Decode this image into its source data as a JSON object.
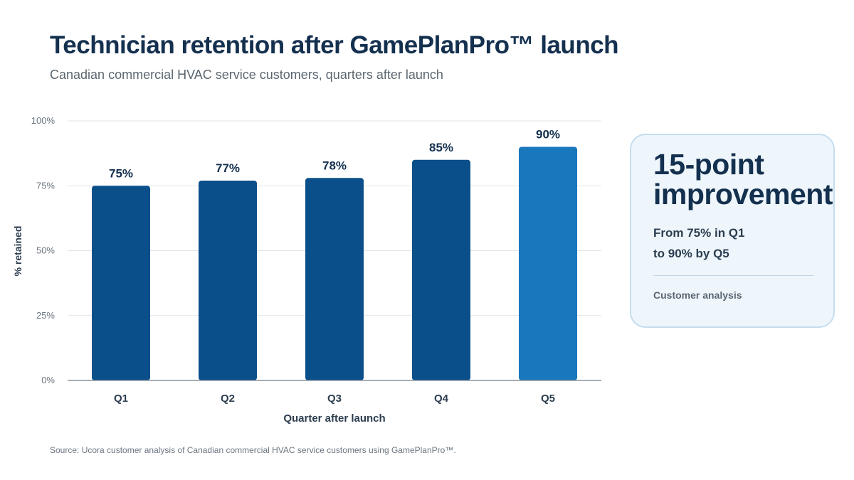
{
  "header": {
    "title": "Technician retention after GamePlanPro™ launch",
    "subtitle": "Canadian commercial HVAC service customers, quarters after launch"
  },
  "chart_data": {
    "type": "bar",
    "categories": [
      "Q1",
      "Q2",
      "Q3",
      "Q4",
      "Q5"
    ],
    "values": [
      75,
      77,
      78,
      85,
      90
    ],
    "data_labels": [
      "75%",
      "77%",
      "78%",
      "85%",
      "90%"
    ],
    "xlabel": "Quarter after launch",
    "ylabel": "% retained",
    "ylim": [
      0,
      100
    ],
    "yticks": [
      0,
      25,
      50,
      75,
      100
    ],
    "ytick_labels": [
      "0%",
      "25%",
      "50%",
      "75%",
      "100%"
    ],
    "grid": true,
    "bar_colors": [
      "#0b4f8a",
      "#0b4f8a",
      "#0b4f8a",
      "#0b4f8a",
      "#1877bd"
    ],
    "highlight_category": "Q5"
  },
  "callout": {
    "headline": "15-point improvement",
    "line1": "From 75% in Q1",
    "line2": "to 90% by Q5",
    "note": "Customer analysis"
  },
  "footer": {
    "source": "Source: Ucora customer analysis of Canadian commercial HVAC service customers using GamePlanPro™."
  }
}
